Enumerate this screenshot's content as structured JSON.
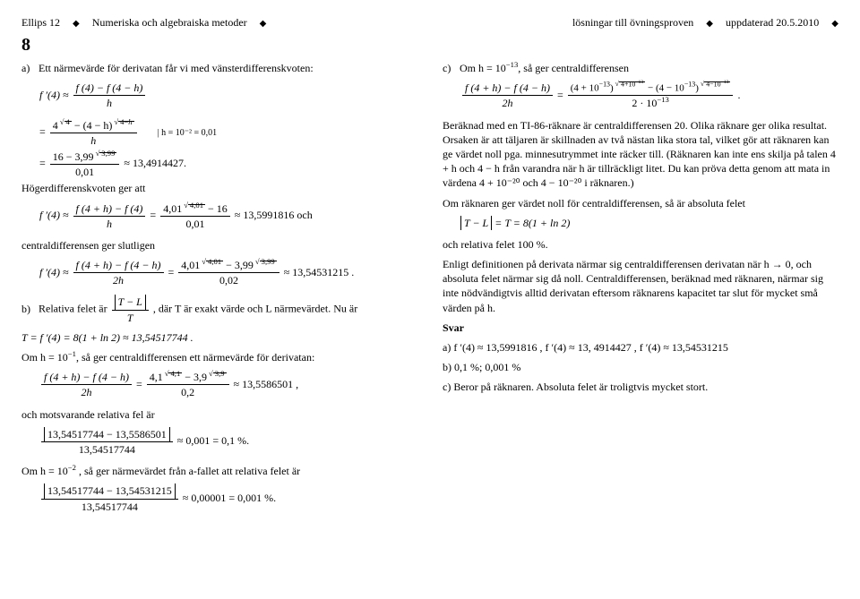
{
  "header": {
    "left1": "Ellips 12",
    "left2": "Numeriska och algebraiska metoder",
    "right1": "lösningar till övningsproven",
    "right2": "uppdaterad 20.5.2010"
  },
  "problemNumber": "8",
  "left": {
    "a_intro": "Ett närmevärde för derivatan får vi med vänsterdifferenskvoten:",
    "a_label": "a)",
    "f4_lhs": "f ′(4) ≈",
    "frac1_num": "f (4) − f (4 − h)",
    "frac1_den": "h",
    "eq2_num_a": "4",
    "eq2_num_b": "− (4 − h)",
    "eq2_den": "h",
    "note_h": "| h = 10⁻² = 0,01",
    "eq3_num_a": "16 − 3,99",
    "eq3_exp": "3,99",
    "eq3_den": "0,01",
    "eq3_rhs": "≈ 13,4914427.",
    "hoger_intro": "Högerdifferenskvoten ger att",
    "hog_num": "f (4 + h) − f (4)",
    "hog_den": "h",
    "hog_r_num_a": "4,01",
    "hog_r_exp": "4,01",
    "hog_r_num_b": "− 16",
    "hog_r_den": "0,01",
    "hog_rhs": "≈ 13,5991816 och",
    "central_intro": "centraldifferensen ger slutligen",
    "cen_num": "f (4 + h) − f (4 − h)",
    "cen_den": "2h",
    "cen_r_num_a": "4,01",
    "cen_r_exp1": "4,01",
    "cen_r_num_b": "− 3,99",
    "cen_r_exp2": "3,99",
    "cen_r_den": "0,02",
    "cen_rhs": "≈ 13,54531215 .",
    "b_label": "b)",
    "b_text1": "Relativa felet är ",
    "b_frac_num": "T − L",
    "b_frac_den": "T",
    "b_text2": ", där T är exakt värde och L närmevärdet. Nu är",
    "b_T_line": "T = f ′(4) = 8(1 + ln 2) ≈ 13,54517744 .",
    "b_text3a": "Om h = 10",
    "b_text3b": ", så ger centraldifferensen ett närmevärde för derivatan:",
    "b_exp1": "−1",
    "b2_num": "f (4 + h) − f (4 − h)",
    "b2_den": "2h",
    "b2_r_num_a": "4,1",
    "b2_r_exp1": "4,1",
    "b2_r_num_b": "− 3,9",
    "b2_r_exp2": "3,9",
    "b2_r_den": "0,2",
    "b2_rhs": "≈ 13,5586501 ,",
    "rel_intro": "och motsvarande relativa fel är",
    "rel_num": "13,54517744 − 13,5586501",
    "rel_den": "13,54517744",
    "rel_rhs": "≈ 0,001 = 0,1 %.",
    "b_text4a": "Om h = 10",
    "b_exp2": "−2",
    "b_text4b": " , så ger närmevärdet från  a-fallet att relativa felet är",
    "rel2_num": "13,54517744 − 13,54531215",
    "rel2_den": "13,54517744",
    "rel2_rhs": "≈ 0,00001 = 0,001 %."
  },
  "right": {
    "c_label": "c)",
    "c_intro_a": "Om h = 10",
    "c_exp": "−13",
    "c_intro_b": ", så ger centraldifferensen",
    "c_num": "f (4 + h) − f (4 − h)",
    "c_den": "2h",
    "c_r_num_a": "(4 + 10",
    "c_r_sup1": "−13",
    "c_r_mid1": ")",
    "c_r_exp_pair1a": "4+10",
    "c_r_exp_pair1b": "−13",
    "c_r_num_b": "− (4 − 10",
    "c_r_sup2": "−13",
    "c_r_mid2": ")",
    "c_r_exp_pair2a": "4−10",
    "c_r_exp_pair2b": "−13",
    "c_r_den_a": "2 · 10",
    "c_r_den_sup": "−13",
    "c_r_end": ".",
    "c_para1": "Beräknad med en TI-86-räknare är centraldifferensen  20.  Olika räknare ger olika resultat. Orsaken är att täljaren är skillnaden av två nästan lika stora tal, vilket gör att räknaren kan ge värdet noll pga.  minnesutrymmet inte räcker till. (Räknaren kan inte ens skilja på talen 4 + h och  4 − h från varandra när h är tillräckligt litet. Du kan pröva detta genom att mata in värdena  4 + 10⁻²⁰ och 4 − 10⁻²⁰ i räknaren.)",
    "c_para2": "Om räknaren ger värdet noll för centraldifferensen, så är absoluta felet",
    "c_abs": "T − L",
    "c_abs_rhs": " = T = 8(1 + ln 2)",
    "c_para3": "och relativa felet  100 %.",
    "c_para4": "Enligt definitionen på derivata närmar sig centraldifferensen derivatan när h → 0, och absoluta felet närmar sig då noll. Centraldifferensen, beräknad med räknaren, närmar sig inte nödvändigtvis alltid derivatan eftersom räknarens kapacitet tar slut för mycket små värden på h.",
    "svar": "Svar",
    "ans_a": "a) f ′(4) ≈ 13,5991816 ,     f ′(4) ≈ 13, 4914427 ,     f ′(4) ≈ 13,54531215",
    "ans_b": "b) 0,1 %; 0,001 %",
    "ans_c": "c) Beror på räknaren. Absoluta felet är troligtvis mycket stort."
  }
}
